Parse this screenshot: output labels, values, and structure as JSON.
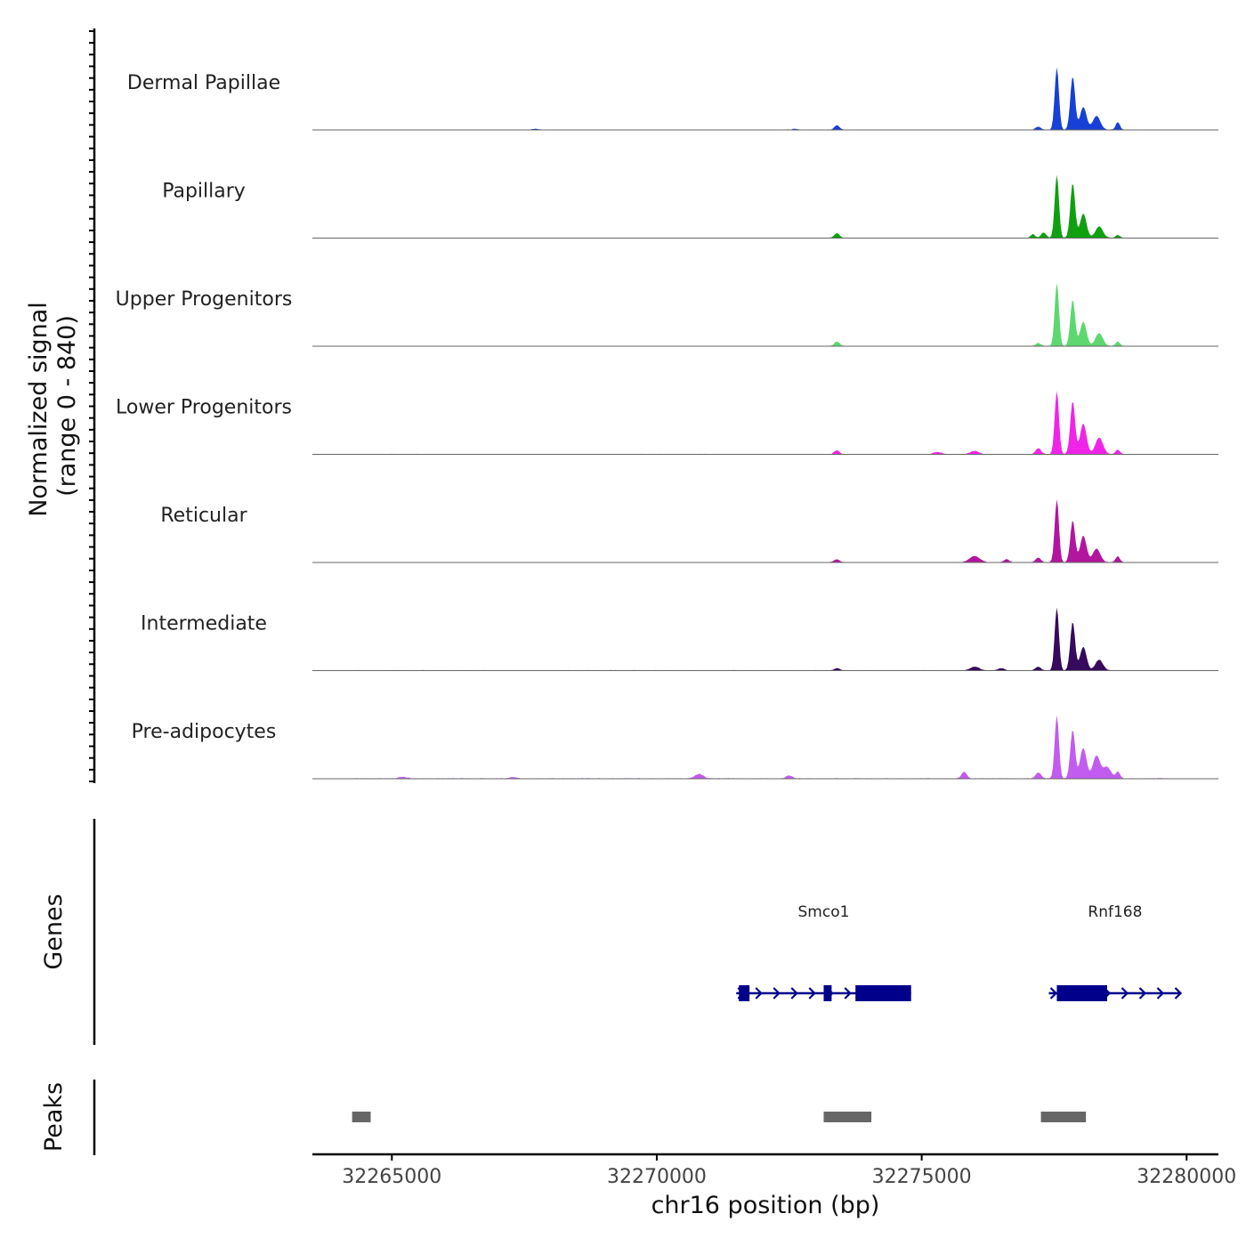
{
  "chart_data": {
    "type": "area",
    "title": "",
    "xlabel": "chr16 position (bp)",
    "ylabel": "Normalized signal",
    "ylabel_range": "(range 0 - 840)",
    "xlim": [
      32263500,
      32280600
    ],
    "ylim": [
      0,
      840
    ],
    "x_ticks": [
      32265000,
      32270000,
      32275000,
      32280000
    ],
    "x_tick_labels": [
      "32265000",
      "32270000",
      "32275000",
      "32280000"
    ],
    "tracks": [
      {
        "name": "Dermal Papillae",
        "color": "#1740d6",
        "peaks": [
          [
            32277550,
            820,
            40
          ],
          [
            32277850,
            700,
            45
          ],
          [
            32278050,
            300,
            60
          ],
          [
            32278300,
            180,
            70
          ],
          [
            32278700,
            100,
            40
          ],
          [
            32277200,
            40,
            50
          ],
          [
            32273400,
            60,
            50
          ],
          [
            32272600,
            10,
            60
          ],
          [
            32267700,
            12,
            60
          ]
        ],
        "baseline": 6
      },
      {
        "name": "Papillary",
        "color": "#0fa00f",
        "peaks": [
          [
            32277550,
            830,
            40
          ],
          [
            32277850,
            720,
            45
          ],
          [
            32278050,
            320,
            60
          ],
          [
            32278350,
            150,
            70
          ],
          [
            32277300,
            70,
            50
          ],
          [
            32277100,
            50,
            40
          ],
          [
            32273400,
            60,
            50
          ],
          [
            32278700,
            40,
            40
          ]
        ],
        "baseline": 6
      },
      {
        "name": "Upper Progenitors",
        "color": "#5cd86f",
        "peaks": [
          [
            32277550,
            830,
            40
          ],
          [
            32277850,
            610,
            45
          ],
          [
            32278050,
            320,
            60
          ],
          [
            32278350,
            170,
            70
          ],
          [
            32278700,
            60,
            40
          ],
          [
            32273400,
            60,
            50
          ],
          [
            32277200,
            40,
            50
          ]
        ],
        "baseline": 5
      },
      {
        "name": "Lower Progenitors",
        "color": "#f024e8",
        "peaks": [
          [
            32277550,
            830,
            40
          ],
          [
            32277850,
            700,
            45
          ],
          [
            32278050,
            400,
            60
          ],
          [
            32278350,
            220,
            70
          ],
          [
            32278700,
            60,
            40
          ],
          [
            32277200,
            80,
            50
          ],
          [
            32276000,
            40,
            80
          ],
          [
            32275300,
            30,
            70
          ],
          [
            32273400,
            50,
            50
          ]
        ],
        "baseline": 7
      },
      {
        "name": "Reticular",
        "color": "#b2159e",
        "peaks": [
          [
            32277550,
            830,
            40
          ],
          [
            32277850,
            550,
            45
          ],
          [
            32278050,
            350,
            60
          ],
          [
            32278300,
            180,
            70
          ],
          [
            32278700,
            80,
            40
          ],
          [
            32276000,
            80,
            100
          ],
          [
            32277200,
            60,
            50
          ],
          [
            32276600,
            40,
            50
          ],
          [
            32273400,
            40,
            50
          ]
        ],
        "baseline": 6
      },
      {
        "name": "Intermediate",
        "color": "#360a5c",
        "peaks": [
          [
            32277550,
            830,
            40
          ],
          [
            32277850,
            640,
            45
          ],
          [
            32278050,
            310,
            60
          ],
          [
            32278350,
            140,
            70
          ],
          [
            32276000,
            50,
            80
          ],
          [
            32276500,
            30,
            60
          ],
          [
            32277200,
            50,
            50
          ],
          [
            32273400,
            30,
            50
          ]
        ],
        "baseline": 7
      },
      {
        "name": "Pre-adipocytes",
        "color": "#c25bf0",
        "peaks": [
          [
            32277550,
            830,
            40
          ],
          [
            32277850,
            640,
            45
          ],
          [
            32278050,
            400,
            60
          ],
          [
            32278300,
            300,
            70
          ],
          [
            32278500,
            150,
            70
          ],
          [
            32278700,
            90,
            40
          ],
          [
            32277200,
            80,
            50
          ],
          [
            32275800,
            90,
            50
          ],
          [
            32270800,
            60,
            80
          ],
          [
            32272500,
            40,
            60
          ],
          [
            32265200,
            20,
            80
          ],
          [
            32267300,
            20,
            70
          ]
        ],
        "baseline": 9
      }
    ],
    "genes_label": "Genes",
    "genes": [
      {
        "name": "Smco1",
        "strand": "+",
        "start": 32271500,
        "end": 32274800,
        "exons": [
          [
            32271550,
            32271750
          ],
          [
            32273150,
            32273300
          ],
          [
            32273750,
            32274800
          ]
        ]
      },
      {
        "name": "Rnf168",
        "strand": "+",
        "start": 32277400,
        "end": 32279900,
        "exons": [
          [
            32277550,
            32278500
          ]
        ]
      }
    ],
    "peaks_label": "Peaks",
    "peak_regions": [
      [
        32264250,
        32264600
      ],
      [
        32273150,
        32274050
      ],
      [
        32277250,
        32278100
      ]
    ],
    "peak_color": "#666666",
    "gene_color": "#00008b"
  }
}
